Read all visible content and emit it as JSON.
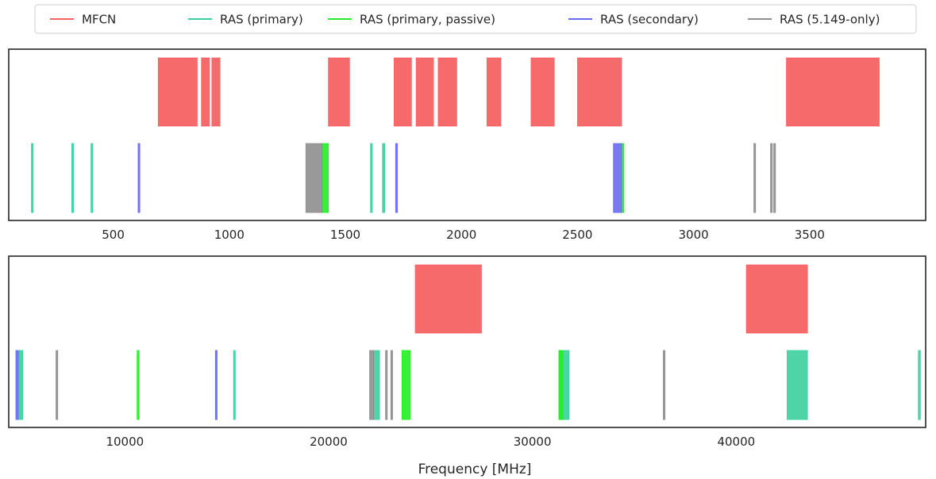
{
  "chart_data": [
    {
      "type": "bar",
      "panel": "top",
      "xlabel": "",
      "xlim": [
        50,
        4000
      ],
      "xticks": [
        500,
        1000,
        1500,
        2000,
        2500,
        3000,
        3500
      ],
      "xtick_labels": [
        "500",
        "1000",
        "1500",
        "2000",
        "2500",
        "3000",
        "3500"
      ],
      "grid": false,
      "series": [
        {
          "name": "MFCN",
          "color": "#f76263",
          "row": "upper",
          "bands": [
            [
              694,
              862
            ],
            [
              880,
              915
            ],
            [
              925,
              960
            ],
            [
              1427,
              1518
            ],
            [
              1710,
              1785
            ],
            [
              1805,
              1880
            ],
            [
              1900,
              1980
            ],
            [
              2110,
              2170
            ],
            [
              2300,
              2400
            ],
            [
              2500,
              2690
            ],
            [
              3400,
              3800
            ]
          ]
        },
        {
          "name": "RAS (primary)",
          "color": "#3ccf9e",
          "row": "lower",
          "bands": [
            [
              150.05,
              153
            ],
            [
              322,
              328.6
            ],
            [
              406.1,
              410
            ],
            [
              1610.6,
              1613.8
            ],
            [
              1660,
              1670
            ]
          ]
        },
        {
          "name": "RAS (primary, passive)",
          "color": "#22ee22",
          "row": "lower",
          "bands": [
            [
              1400,
              1427
            ],
            [
              2690,
              2700
            ]
          ]
        },
        {
          "name": "RAS (secondary)",
          "color": "#6a6af5",
          "row": "lower",
          "bands": [
            [
              608,
              614
            ],
            [
              1718.8,
              1722.2
            ],
            [
              2655,
              2690
            ]
          ]
        },
        {
          "name": "RAS (5.149-only)",
          "color": "#8e8e8e",
          "row": "lower",
          "bands": [
            [
              1330,
              1400
            ],
            [
              3260,
              3267
            ],
            [
              3332,
              3339
            ],
            [
              3345.8,
              3352.5
            ]
          ]
        }
      ]
    },
    {
      "type": "bar",
      "panel": "bottom",
      "xlabel": "Frequency [MHz]",
      "xlim": [
        4300,
        49300
      ],
      "xticks": [
        10000,
        20000,
        30000,
        40000
      ],
      "xtick_labels": [
        "10000",
        "20000",
        "30000",
        "40000"
      ],
      "grid": false,
      "series": [
        {
          "name": "MFCN",
          "color": "#f76263",
          "row": "upper",
          "bands": [
            [
              24250,
              27500
            ],
            [
              40500,
              43500
            ]
          ]
        },
        {
          "name": "RAS (primary)",
          "color": "#3ccf9e",
          "row": "lower",
          "bands": [
            [
              4800,
              4990
            ],
            [
              15350,
              15400
            ],
            [
              22210,
              22500
            ],
            [
              31300,
              31800
            ],
            [
              42500,
              43500
            ],
            [
              48940,
              49040
            ]
          ]
        },
        {
          "name": "RAS (primary, passive)",
          "color": "#22ee22",
          "row": "lower",
          "bands": [
            [
              10600,
              10700
            ],
            [
              23600,
              24000
            ],
            [
              31300,
              31500
            ]
          ]
        },
        {
          "name": "RAS (secondary)",
          "color": "#6a6af5",
          "row": "lower",
          "bands": [
            [
              4650,
              4770
            ],
            [
              14470,
              14500
            ]
          ]
        },
        {
          "name": "RAS (5.149-only)",
          "color": "#8e8e8e",
          "row": "lower",
          "bands": [
            [
              6650,
              6675.2
            ],
            [
              22010,
              22210
            ],
            [
              22810,
              22860
            ],
            [
              23070,
              23120
            ],
            [
              36430,
              36500
            ]
          ]
        }
      ]
    }
  ],
  "legend": {
    "placement": "top-center",
    "items": [
      {
        "label": "MFCN",
        "color": "#f76263"
      },
      {
        "label": "RAS (primary)",
        "color": "#3ccf9e"
      },
      {
        "label": "RAS (primary, passive)",
        "color": "#22ee22"
      },
      {
        "label": "RAS (secondary)",
        "color": "#6a6af5"
      },
      {
        "label": "RAS (5.149-only)",
        "color": "#8e8e8e"
      }
    ]
  }
}
